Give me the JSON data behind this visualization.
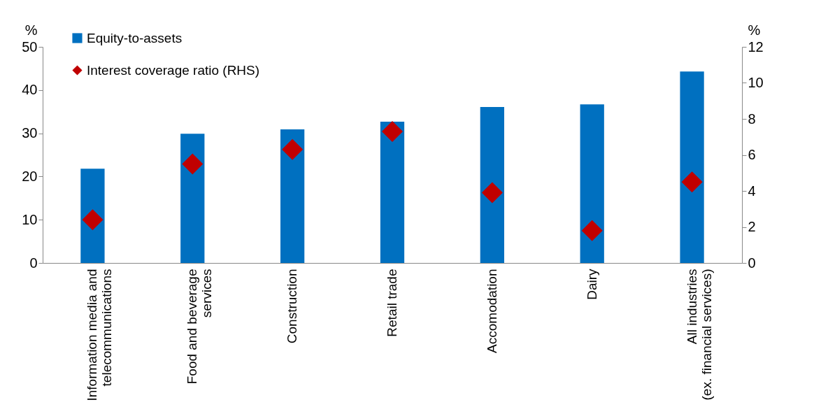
{
  "chart_data": {
    "type": "bar",
    "categories": [
      "Information media and\ntelecommunications",
      "Food and beverage\nservices",
      "Construction",
      "Retail trade",
      "Accomodation",
      "Dairy",
      "All industries\n(ex. financial services)"
    ],
    "series": [
      {
        "name": "Equity-to-assets",
        "color": "#0070c0",
        "values": [
          21.8,
          29.9,
          30.9,
          32.7,
          36.1,
          36.7,
          44.3
        ]
      },
      {
        "name": "Interest coverage ratio (RHS)",
        "type": "scatter",
        "axis": "y2",
        "marker": "diamond",
        "color": "#c00000",
        "values": [
          2.4,
          5.5,
          6.3,
          7.3,
          3.9,
          1.8,
          4.5
        ]
      }
    ],
    "ylabel": "%",
    "y2label": "%",
    "ylim": [
      0,
      50
    ],
    "yticks": [
      0,
      10,
      20,
      30,
      40,
      50
    ],
    "y2lim": [
      0,
      12
    ],
    "y2ticks": [
      0,
      2,
      4,
      6,
      8,
      10,
      12
    ],
    "legend": "top left",
    "grid": false
  }
}
